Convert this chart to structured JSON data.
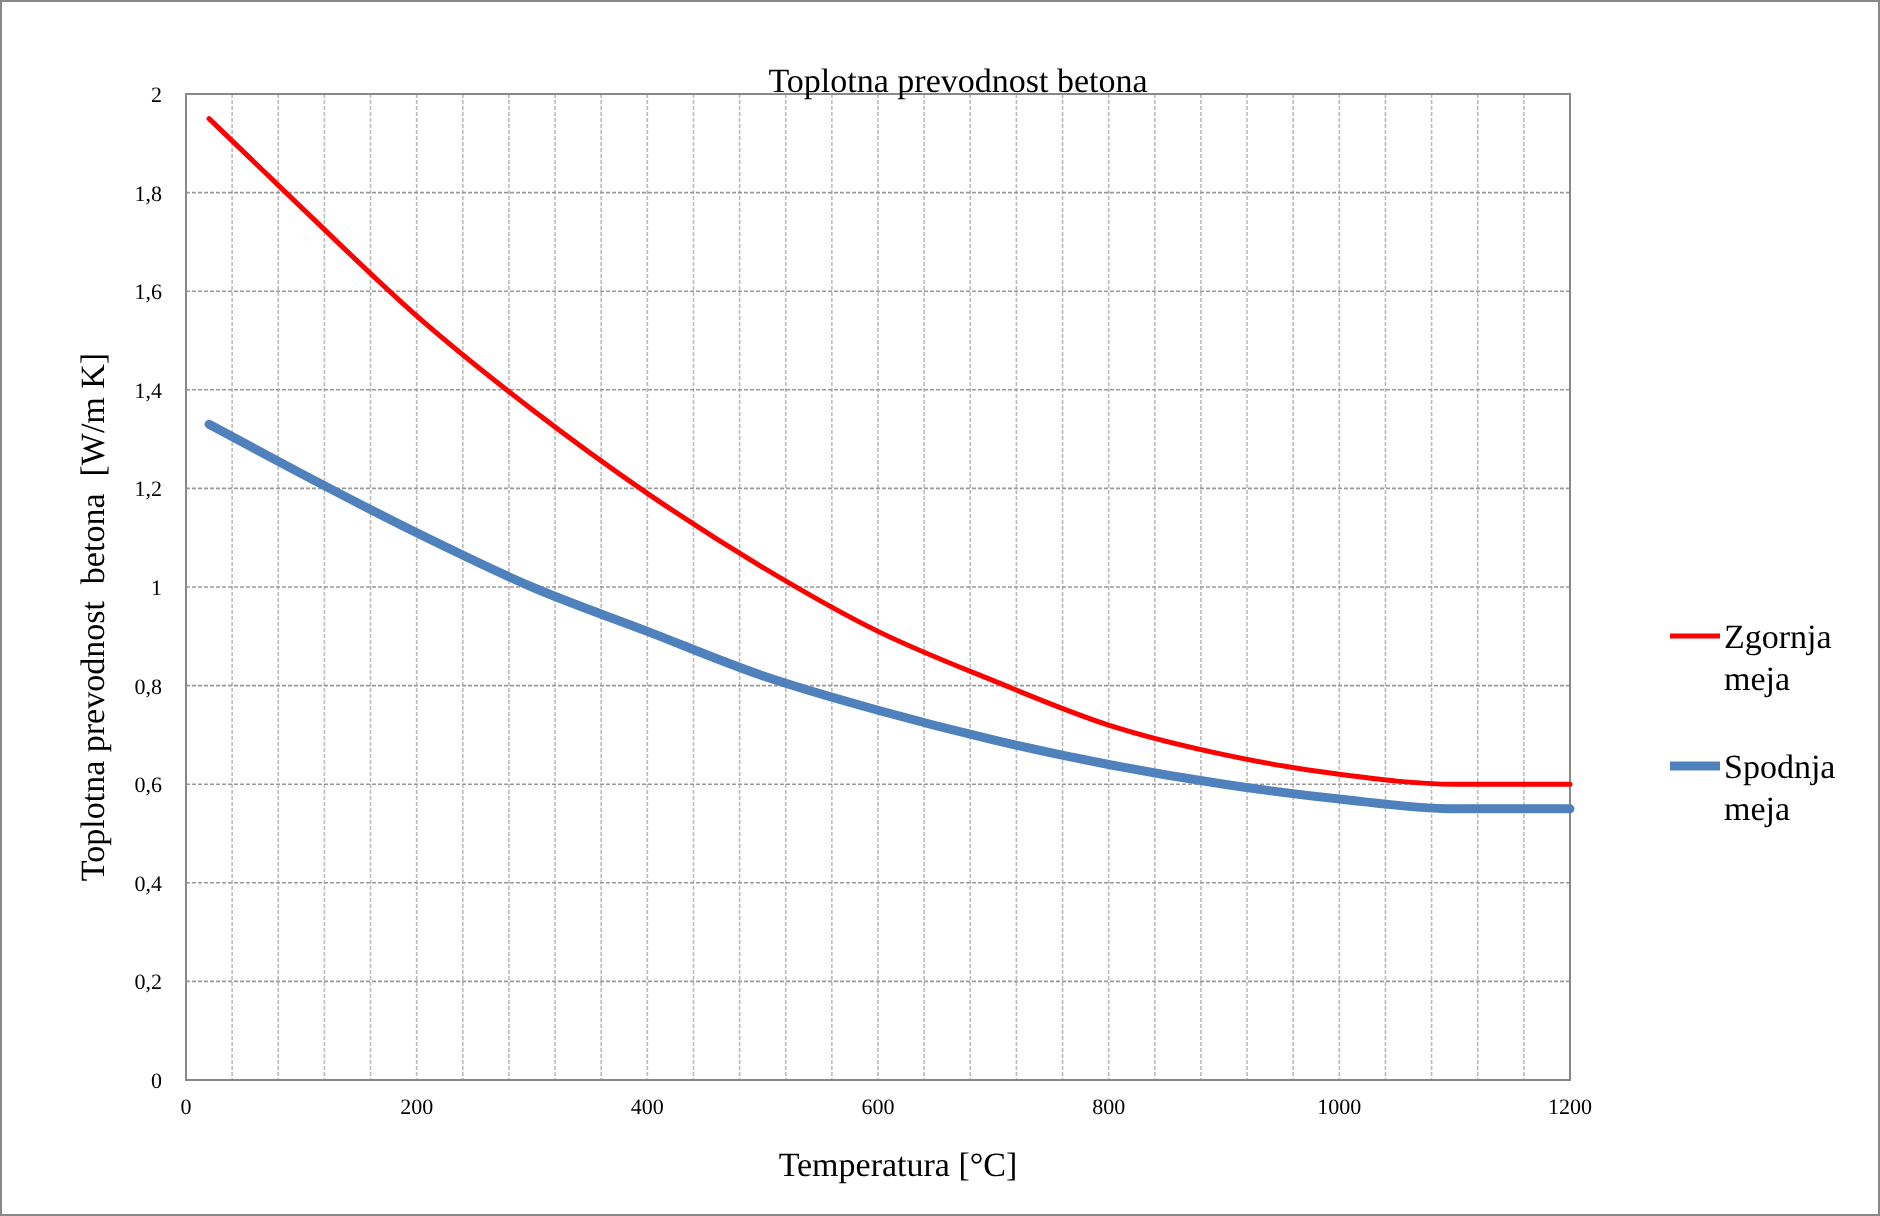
{
  "chart_data": {
    "type": "line",
    "title": "Toplotna prevodnost betona",
    "xlabel": "Temperatura [°C]",
    "ylabel": "Toplotna prevodnost  betona  [W/m K]",
    "x": [
      20,
      100,
      200,
      300,
      400,
      500,
      600,
      700,
      800,
      900,
      1000,
      1100,
      1200
    ],
    "series": [
      {
        "name": "Zgornja meja",
        "color": "#ff0000",
        "values": [
          1.95,
          1.77,
          1.55,
          1.36,
          1.19,
          1.04,
          0.91,
          0.81,
          0.72,
          0.66,
          0.62,
          0.6,
          0.6
        ]
      },
      {
        "name": "Spodnja meja",
        "color": "#4f81bd",
        "values": [
          1.33,
          1.23,
          1.11,
          1.0,
          0.91,
          0.82,
          0.75,
          0.69,
          0.64,
          0.6,
          0.57,
          0.55,
          0.55
        ]
      }
    ],
    "xlim": [
      0,
      1200
    ],
    "xticks": [
      0,
      {
        "value": 40,
        "label": null
      },
      {
        "value": 80,
        "label": null
      },
      {
        "value": 120,
        "label": null
      },
      {
        "value": 160,
        "label": null
      },
      200,
      {
        "value": 240,
        "label": null
      },
      {
        "value": 280,
        "label": null
      },
      {
        "value": 320,
        "label": null
      },
      {
        "value": 360,
        "label": null
      },
      400,
      {
        "value": 440,
        "label": null
      },
      {
        "value": 480,
        "label": null
      },
      {
        "value": 520,
        "label": null
      },
      {
        "value": 560,
        "label": null
      },
      600,
      {
        "value": 640,
        "label": null
      },
      {
        "value": 680,
        "label": null
      },
      {
        "value": 720,
        "label": null
      },
      {
        "value": 760,
        "label": null
      },
      800,
      {
        "value": 840,
        "label": null
      },
      {
        "value": 880,
        "label": null
      },
      {
        "value": 920,
        "label": null
      },
      {
        "value": 960,
        "label": null
      },
      1000,
      {
        "value": 1040,
        "label": null
      },
      {
        "value": 1080,
        "label": null
      },
      {
        "value": 1120,
        "label": null
      },
      {
        "value": 1160,
        "label": null
      },
      1200
    ],
    "ylim": [
      0,
      2
    ],
    "yticks": [
      0,
      {
        "value": 0.2,
        "label": "0,2"
      },
      {
        "value": 0.4,
        "label": "0,4"
      },
      {
        "value": 0.6,
        "label": "0,6"
      },
      {
        "value": 0.8,
        "label": "0,8"
      },
      1,
      {
        "value": 1.2,
        "label": "1,2"
      },
      {
        "value": 1.4,
        "label": "1,4"
      },
      {
        "value": 1.6,
        "label": "1,6"
      },
      {
        "value": 1.8,
        "label": "1,8"
      },
      2
    ],
    "grid": true,
    "legend": "right",
    "marker": "none",
    "line_style": "solid"
  }
}
